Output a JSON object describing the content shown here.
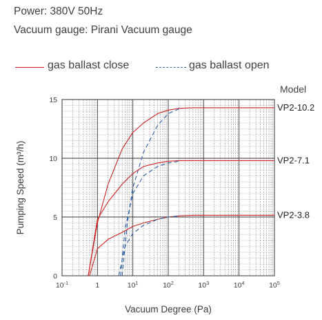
{
  "header": {
    "power": "Power: 380V 50Hz",
    "gauge": "Vacuum gauge: Pirani Vacuum gauge"
  },
  "legend": {
    "close_label": "gas ballast close",
    "open_label": "gas ballast open"
  },
  "model_header": "Model",
  "colors": {
    "close": "#cc2222",
    "open": "#2f5fa8"
  },
  "chart_data": {
    "type": "line",
    "xscale": "log",
    "xlim": [
      0.1,
      100000
    ],
    "ylim": [
      0,
      15
    ],
    "xlabel": "Vacuum Degree (Pa)",
    "ylabel": "Pumping Speed (m³/h)",
    "xticks": [
      {
        "value": 0.1,
        "base": "10",
        "exp": "-1"
      },
      {
        "value": 1,
        "base": "1",
        "exp": ""
      },
      {
        "value": 10,
        "base": "10",
        "exp": "1"
      },
      {
        "value": 100,
        "base": "10",
        "exp": "2"
      },
      {
        "value": 1000,
        "base": "10",
        "exp": "3"
      },
      {
        "value": 10000,
        "base": "10",
        "exp": "4"
      },
      {
        "value": 100000,
        "base": "10",
        "exp": "5"
      }
    ],
    "yticks": [
      "0",
      "5",
      "10",
      "15"
    ],
    "grid": true,
    "series": [
      {
        "model": "VP2-10.2",
        "kind": "close",
        "x": [
          0.55,
          1,
          2,
          5,
          10,
          20,
          50,
          100,
          200,
          500,
          1000,
          100000
        ],
        "y": [
          0,
          4.5,
          7.8,
          10.8,
          12.2,
          13.0,
          13.8,
          14.1,
          14.25,
          14.3,
          14.3,
          14.3
        ]
      },
      {
        "model": "VP2-10.2",
        "kind": "open",
        "x": [
          5,
          7,
          10,
          20,
          50,
          100,
          200
        ],
        "y": [
          0,
          4.5,
          7.5,
          10.5,
          12.8,
          13.8,
          14.2
        ]
      },
      {
        "model": "VP2-7.1",
        "kind": "close",
        "x": [
          0.55,
          1,
          2,
          5,
          10,
          20,
          50,
          100,
          200,
          500,
          1000,
          100000
        ],
        "y": [
          0,
          4.8,
          6.3,
          7.8,
          8.7,
          9.3,
          9.6,
          9.75,
          9.8,
          9.8,
          9.8,
          9.8
        ]
      },
      {
        "model": "VP2-7.1",
        "kind": "open",
        "x": [
          4.5,
          6,
          10,
          20,
          50,
          100,
          200
        ],
        "y": [
          0,
          4.0,
          7.0,
          8.5,
          9.3,
          9.6,
          9.75
        ]
      },
      {
        "model": "VP2-3.8",
        "kind": "close",
        "x": [
          0.6,
          1,
          2,
          5,
          10,
          20,
          50,
          100,
          200,
          500,
          1000,
          100000
        ],
        "y": [
          0,
          2.3,
          3.1,
          3.7,
          4.2,
          4.5,
          4.8,
          5.0,
          5.1,
          5.15,
          5.15,
          5.15
        ]
      },
      {
        "model": "VP2-3.8",
        "kind": "open",
        "x": [
          4,
          6,
          10,
          20,
          50,
          100,
          200
        ],
        "y": [
          0,
          2.5,
          3.6,
          4.3,
          4.8,
          5.0,
          5.1
        ]
      }
    ],
    "model_labels": [
      {
        "text": "VP2-10.2",
        "y": 14.3
      },
      {
        "text": "VP2-7.1",
        "y": 9.8
      },
      {
        "text": "VP2-3.8",
        "y": 5.15
      }
    ]
  }
}
